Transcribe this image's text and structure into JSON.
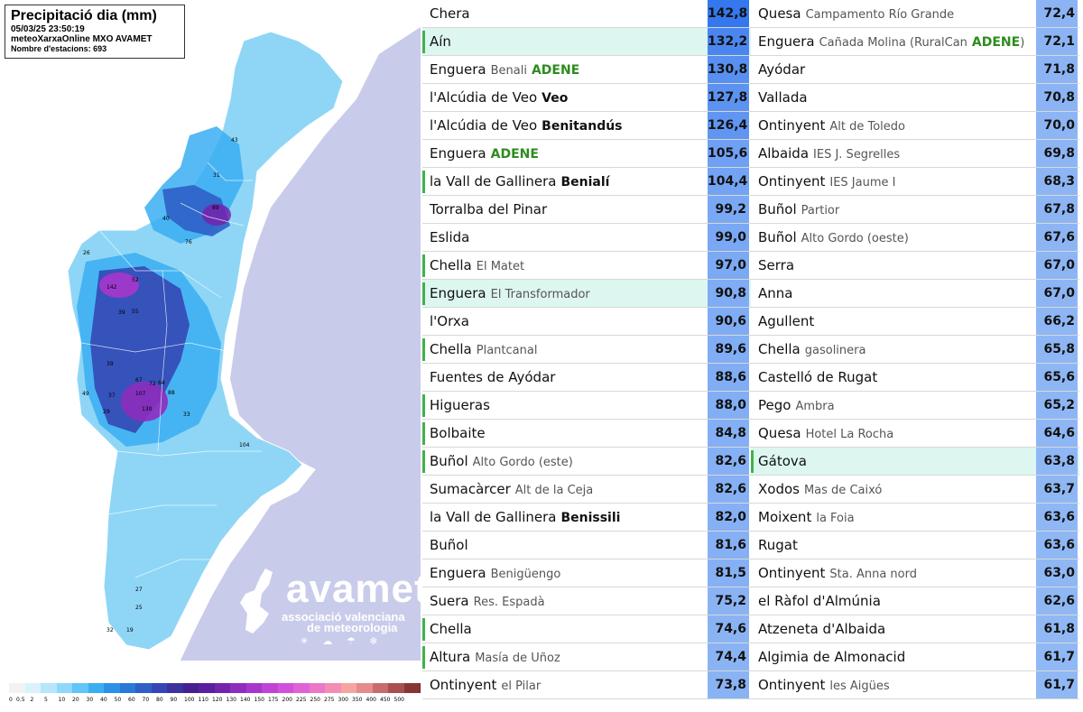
{
  "map": {
    "title": "Precipitació dia (mm)",
    "datetime": "05/03/25 23:50:19",
    "source": "meteoXarxaOnline MXO AVAMET",
    "stations": "Nombre d'estacions: 693",
    "labels": [
      {
        "text": "142"
      },
      {
        "text": "52"
      },
      {
        "text": "107"
      },
      {
        "text": "130"
      },
      {
        "text": "88"
      },
      {
        "text": "67"
      },
      {
        "text": "39"
      },
      {
        "text": "26"
      },
      {
        "text": "49"
      },
      {
        "text": "37"
      },
      {
        "text": "40"
      },
      {
        "text": "55"
      },
      {
        "text": "76"
      },
      {
        "text": "89"
      },
      {
        "text": "43"
      },
      {
        "text": "31"
      },
      {
        "text": "29"
      },
      {
        "text": "104"
      },
      {
        "text": "64"
      },
      {
        "text": "72"
      },
      {
        "text": "25"
      },
      {
        "text": "27"
      },
      {
        "text": "33"
      },
      {
        "text": "39"
      },
      {
        "text": "19"
      },
      {
        "text": "32"
      }
    ],
    "logo": {
      "brand": "avamet",
      "line1": "associació valenciana",
      "line2": "de meteorologia",
      "icons": "☀ ☁ ☂ ❄"
    },
    "legend": {
      "colors": [
        "#f2f2f2",
        "#d9f2fb",
        "#b6e6fa",
        "#8ed8fb",
        "#63c5f8",
        "#3aaef2",
        "#2a92e6",
        "#2a79d8",
        "#2e5fc7",
        "#3447b5",
        "#3b32a0",
        "#44218f",
        "#5a1f9e",
        "#7423ad",
        "#8e2cbe",
        "#a836cc",
        "#bf44d6",
        "#d350dc",
        "#e062d6",
        "#ec77c8",
        "#f28db4",
        "#f4a5a2",
        "#e58b8b",
        "#c96b6b",
        "#a84f4f",
        "#873636",
        "#6b2323",
        "#1a1a1a"
      ],
      "labels": [
        "0",
        "0.5",
        "2",
        "5",
        "10",
        "20",
        "30",
        "40",
        "50",
        "60",
        "70",
        "80",
        "90",
        "100",
        "110",
        "120",
        "130",
        "140",
        "150",
        "175",
        "200",
        "225",
        "250",
        "275",
        "300",
        "350",
        "400",
        "450",
        "500"
      ]
    }
  },
  "column1": [
    {
      "name": "Chera",
      "sub": "",
      "subStyle": "",
      "value": "142,8",
      "color": "#3477ee",
      "accent": false,
      "hl": false
    },
    {
      "name": "Aín",
      "sub": "",
      "subStyle": "",
      "value": "132,2",
      "color": "#4b86f0",
      "accent": true,
      "hl": true
    },
    {
      "name": "Enguera",
      "sub": "Benali",
      "subStyle": "n",
      "sub2": "ADENE",
      "value": "130,8",
      "color": "#5790f1",
      "accent": false,
      "hl": false
    },
    {
      "name": "l'Alcúdia de Veo",
      "sub": "Veo",
      "subStyle": "b",
      "value": "127,8",
      "color": "#5c93f1",
      "accent": false,
      "hl": false
    },
    {
      "name": "l'Alcúdia de Veo",
      "sub": "Benitandús",
      "subStyle": "b",
      "value": "126,4",
      "color": "#6096f1",
      "accent": false,
      "hl": false
    },
    {
      "name": "Enguera",
      "sub": "ADENE",
      "subStyle": "g",
      "value": "105,6",
      "color": "#6fa0f3",
      "accent": false,
      "hl": false
    },
    {
      "name": "la Vall de Gallinera",
      "sub": "Benialí",
      "subStyle": "b",
      "value": "104,4",
      "color": "#73a3f3",
      "accent": true,
      "hl": false
    },
    {
      "name": "Torralba del Pinar",
      "sub": "",
      "subStyle": "",
      "value": "99,2",
      "color": "#7aa8f4",
      "accent": false,
      "hl": false
    },
    {
      "name": "Eslida",
      "sub": "",
      "subStyle": "",
      "value": "99,0",
      "color": "#7aa8f4",
      "accent": false,
      "hl": false
    },
    {
      "name": "Chella",
      "sub": "El Matet",
      "subStyle": "",
      "value": "97,0",
      "color": "#7ca9f4",
      "accent": true,
      "hl": false
    },
    {
      "name": "Enguera",
      "sub": "El Transformador",
      "subStyle": "",
      "value": "90,8",
      "color": "#80acf4",
      "accent": true,
      "hl": true
    },
    {
      "name": "l'Orxa",
      "sub": "",
      "subStyle": "",
      "value": "90,6",
      "color": "#80acf4",
      "accent": false,
      "hl": false
    },
    {
      "name": "Chella",
      "sub": "Plantcanal",
      "subStyle": "",
      "value": "89,6",
      "color": "#81adf4",
      "accent": true,
      "hl": false
    },
    {
      "name": "Fuentes de Ayódar",
      "sub": "",
      "subStyle": "",
      "value": "88,6",
      "color": "#81adf4",
      "accent": false,
      "hl": false
    },
    {
      "name": "Higueras",
      "sub": "",
      "subStyle": "",
      "value": "88,0",
      "color": "#82aef4",
      "accent": true,
      "hl": false
    },
    {
      "name": "Bolbaite",
      "sub": "",
      "subStyle": "",
      "value": "84,8",
      "color": "#84aff4",
      "accent": true,
      "hl": false
    },
    {
      "name": "Buñol",
      "sub": "Alto Gordo (este)",
      "subStyle": "",
      "value": "82,6",
      "color": "#86b0f4",
      "accent": true,
      "hl": false
    },
    {
      "name": "Sumacàrcer",
      "sub": "Alt de la Ceja",
      "subStyle": "",
      "value": "82,6",
      "color": "#86b0f4",
      "accent": false,
      "hl": false
    },
    {
      "name": "la Vall de Gallinera",
      "sub": "Benissili",
      "subStyle": "b",
      "value": "82,0",
      "color": "#86b0f4",
      "accent": false,
      "hl": false
    },
    {
      "name": "Buñol",
      "sub": "",
      "subStyle": "",
      "value": "81,6",
      "color": "#86b0f4",
      "accent": false,
      "hl": false
    },
    {
      "name": "Enguera",
      "sub": "Benigüengo",
      "subStyle": "",
      "value": "81,5",
      "color": "#86b0f4",
      "accent": false,
      "hl": false
    },
    {
      "name": "Suera",
      "sub": "Res. Espadà",
      "subStyle": "",
      "value": "75,2",
      "color": "#8ab3f4",
      "accent": false,
      "hl": false
    },
    {
      "name": "Chella",
      "sub": "",
      "subStyle": "",
      "value": "74,6",
      "color": "#8ab3f4",
      "accent": true,
      "hl": false
    },
    {
      "name": "Altura",
      "sub": "Masía de Uñoz",
      "subStyle": "",
      "value": "74,4",
      "color": "#8ab3f4",
      "accent": true,
      "hl": false
    },
    {
      "name": "Ontinyent",
      "sub": "el Pilar",
      "subStyle": "",
      "value": "73,8",
      "color": "#8ab3f4",
      "accent": false,
      "hl": false
    }
  ],
  "column2": [
    {
      "name": "Quesa",
      "sub": "Campamento Río Grande",
      "subStyle": "",
      "value": "72,4",
      "color": "#8cb4f4",
      "accent": false,
      "hl": false
    },
    {
      "name": "Enguera",
      "sub": "Cañada Molina (RuralCan",
      "subStyle": "n",
      "sub2": "ADENE",
      "sub3": ")",
      "value": "72,1",
      "color": "#8cb4f4",
      "accent": false,
      "hl": false
    },
    {
      "name": "Ayódar",
      "sub": "",
      "subStyle": "",
      "value": "71,8",
      "color": "#8cb4f4",
      "accent": false,
      "hl": false
    },
    {
      "name": "Vallada",
      "sub": "",
      "subStyle": "",
      "value": "70,8",
      "color": "#8cb4f4",
      "accent": false,
      "hl": false
    },
    {
      "name": "Ontinyent",
      "sub": "Alt de Toledo",
      "subStyle": "",
      "value": "70,0",
      "color": "#8db5f4",
      "accent": false,
      "hl": false
    },
    {
      "name": "Albaida",
      "sub": "IES J. Segrelles",
      "subStyle": "",
      "value": "69,8",
      "color": "#8db5f4",
      "accent": false,
      "hl": false
    },
    {
      "name": "Ontinyent",
      "sub": "IES Jaume I",
      "subStyle": "",
      "value": "68,3",
      "color": "#8db5f4",
      "accent": false,
      "hl": false
    },
    {
      "name": "Buñol",
      "sub": "Partior",
      "subStyle": "",
      "value": "67,8",
      "color": "#8db5f4",
      "accent": false,
      "hl": false
    },
    {
      "name": "Buñol",
      "sub": "Alto Gordo (oeste)",
      "subStyle": "",
      "value": "67,6",
      "color": "#8db5f4",
      "accent": false,
      "hl": false
    },
    {
      "name": "Serra",
      "sub": "",
      "subStyle": "",
      "value": "67,0",
      "color": "#8db5f4",
      "accent": false,
      "hl": false
    },
    {
      "name": "Anna",
      "sub": "",
      "subStyle": "",
      "value": "67,0",
      "color": "#8db5f4",
      "accent": false,
      "hl": false
    },
    {
      "name": "Agullent",
      "sub": "",
      "subStyle": "",
      "value": "66,2",
      "color": "#8eb6f4",
      "accent": false,
      "hl": false
    },
    {
      "name": "Chella",
      "sub": "gasolinera",
      "subStyle": "",
      "value": "65,8",
      "color": "#8eb6f4",
      "accent": false,
      "hl": false
    },
    {
      "name": "Castelló de Rugat",
      "sub": "",
      "subStyle": "",
      "value": "65,6",
      "color": "#8eb6f4",
      "accent": false,
      "hl": false
    },
    {
      "name": "Pego",
      "sub": "Ambra",
      "subStyle": "",
      "value": "65,2",
      "color": "#8eb6f4",
      "accent": false,
      "hl": false
    },
    {
      "name": "Quesa",
      "sub": "Hotel La Rocha",
      "subStyle": "",
      "value": "64,6",
      "color": "#8eb6f4",
      "accent": false,
      "hl": false
    },
    {
      "name": "Gátova",
      "sub": "",
      "subStyle": "",
      "value": "63,8",
      "color": "#8fb7f4",
      "accent": true,
      "hl": true
    },
    {
      "name": "Xodos",
      "sub": "Mas de Caixó",
      "subStyle": "",
      "value": "63,7",
      "color": "#8fb7f4",
      "accent": false,
      "hl": false
    },
    {
      "name": "Moixent",
      "sub": "la Foia",
      "subStyle": "",
      "value": "63,6",
      "color": "#8fb7f4",
      "accent": false,
      "hl": false
    },
    {
      "name": "Rugat",
      "sub": "",
      "subStyle": "",
      "value": "63,6",
      "color": "#8fb7f4",
      "accent": false,
      "hl": false
    },
    {
      "name": "Ontinyent",
      "sub": "Sta. Anna nord",
      "subStyle": "",
      "value": "63,0",
      "color": "#8fb7f4",
      "accent": false,
      "hl": false
    },
    {
      "name": "el Ràfol d'Almúnia",
      "sub": "",
      "subStyle": "",
      "value": "62,6",
      "color": "#8fb7f4",
      "accent": false,
      "hl": false
    },
    {
      "name": "Atzeneta d'Albaida",
      "sub": "",
      "subStyle": "",
      "value": "61,8",
      "color": "#90b8f4",
      "accent": false,
      "hl": false
    },
    {
      "name": "Algimia de Almonacid",
      "sub": "",
      "subStyle": "",
      "value": "61,7",
      "color": "#90b8f4",
      "accent": false,
      "hl": false
    },
    {
      "name": "Ontinyent",
      "sub": "les Aigües",
      "subStyle": "",
      "value": "61,7",
      "color": "#90b8f4",
      "accent": false,
      "hl": false
    }
  ]
}
